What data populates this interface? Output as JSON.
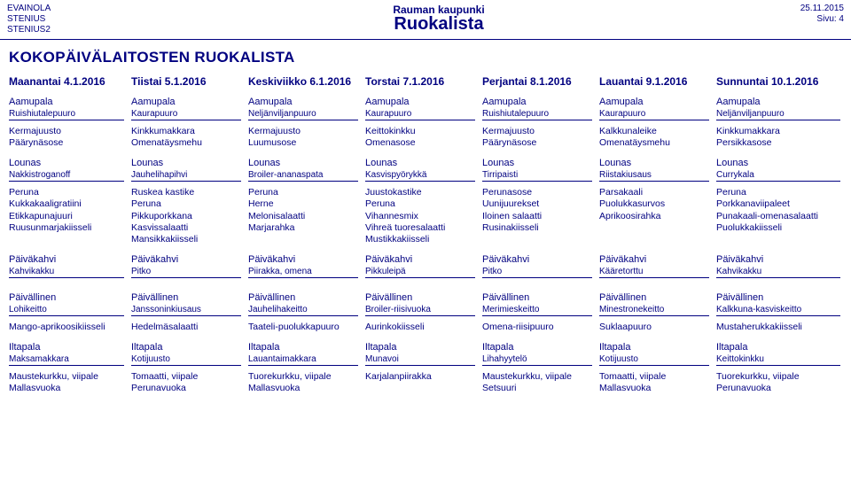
{
  "colors": {
    "ink": "#000080",
    "paper": "#ffffff"
  },
  "header": {
    "leftLines": [
      "EVAINOLA",
      "STENIUS",
      "STENIUS2"
    ],
    "city": "Rauman kaupunki",
    "docTitle": "Ruokalista",
    "date": "25.11.2015",
    "pageLabel": "Sivu: 4"
  },
  "pageTitle": "KOKOPÄIVÄLAITOSTEN RUOKALISTA",
  "days": [
    "Maanantai 4.1.2016",
    "Tiistai 5.1.2016",
    "Keskiviikko 6.1.2016",
    "Torstai 7.1.2016",
    "Perjantai 8.1.2016",
    "Lauantai 9.1.2016",
    "Sunnuntai 10.1.2016"
  ],
  "sections": [
    {
      "name": "Aamupala",
      "cols": [
        [
          "Ruishiutalepuuro",
          "Kermajuusto",
          "Päärynäsose"
        ],
        [
          "Kaurapuuro",
          "Kinkkumakkara",
          "Omenatäysmehu"
        ],
        [
          "Neljänviljanpuuro",
          "Kermajuusto",
          "Luumusose"
        ],
        [
          "Kaurapuuro",
          "Keittokinkku",
          "Omenasose"
        ],
        [
          "Ruishiutalepuuro",
          "Kermajuusto",
          "Päärynäsose"
        ],
        [
          "Kaurapuuro",
          "Kalkkunaleike",
          "Omenatäysmehu"
        ],
        [
          "Neljänviljanpuuro",
          "Kinkkumakkara",
          "Persikkasose"
        ]
      ]
    },
    {
      "name": "Lounas",
      "cols": [
        [
          "Nakkistroganoff",
          "Peruna",
          "Kukkakaaligratiini",
          "Etikkapunajuuri",
          "Ruusunmarjakiisseli"
        ],
        [
          "Jauhelihapihvi",
          "Ruskea kastike",
          "Peruna",
          "Pikkuporkkana",
          "Kasvissalaatti",
          "Mansikkakiisseli"
        ],
        [
          "Broiler-ananaspata",
          "Peruna",
          "Herne",
          "Melonisalaatti",
          "Marjarahka"
        ],
        [
          "Kasvispyörykkä",
          "Juustokastike",
          "Peruna",
          "Vihannesmix",
          "Vihreä tuoresalaatti",
          "Mustikkakiisseli"
        ],
        [
          "Tirripaisti",
          "Perunasose",
          "Uunijuurekset",
          "Iloinen salaatti",
          "Rusinakiisseli"
        ],
        [
          "Riistakiusaus",
          "Parsakaali",
          "Puolukkasurvos",
          "Aprikoosirahka"
        ],
        [
          "Currykala",
          "Peruna",
          "Porkkanaviipaleet",
          "Punakaali-omenasalaatti",
          "Puolukkakiisseli"
        ]
      ]
    },
    {
      "name": "Päiväkahvi",
      "cols": [
        [
          "Kahvikakku"
        ],
        [
          "Pitko"
        ],
        [
          "Piirakka, omena"
        ],
        [
          "Pikkuleipä"
        ],
        [
          "Pitko"
        ],
        [
          "Kääretorttu"
        ],
        [
          "Kahvikakku"
        ]
      ]
    },
    {
      "name": "Päivällinen",
      "cols": [
        [
          "Lohikeitto",
          "Mango-aprikoosikiisseli"
        ],
        [
          "Janssoninkiusaus",
          "Hedelmäsalaatti"
        ],
        [
          "Jauhelihakeitto",
          "Taateli-puolukkapuuro"
        ],
        [
          "Broiler-riisivuoka",
          "Aurinkokiisseli"
        ],
        [
          "Merimieskeitto",
          "Omena-riisipuuro"
        ],
        [
          "Minestronekeitto",
          "Suklaapuuro"
        ],
        [
          "Kalkkuna-kasviskeitto",
          "Mustaherukkakiisseli"
        ]
      ]
    },
    {
      "name": "Iltapala",
      "cols": [
        [
          "Maksamakkara",
          "Maustekurkku, viipale",
          "Mallasvuoka"
        ],
        [
          "Kotijuusto",
          "Tomaatti, viipale",
          "Perunavuoka"
        ],
        [
          "Lauantaimakkara",
          "Tuorekurkku, viipale",
          "Mallasvuoka"
        ],
        [
          "Munavoi",
          "Karjalanpiirakka"
        ],
        [
          "Lihahyytelö",
          "Maustekurkku, viipale",
          "Setsuuri"
        ],
        [
          "Kotijuusto",
          "Tomaatti, viipale",
          "Mallasvuoka"
        ],
        [
          "Keittokinkku",
          "Tuorekurkku, viipale",
          "Perunavuoka"
        ]
      ]
    }
  ]
}
